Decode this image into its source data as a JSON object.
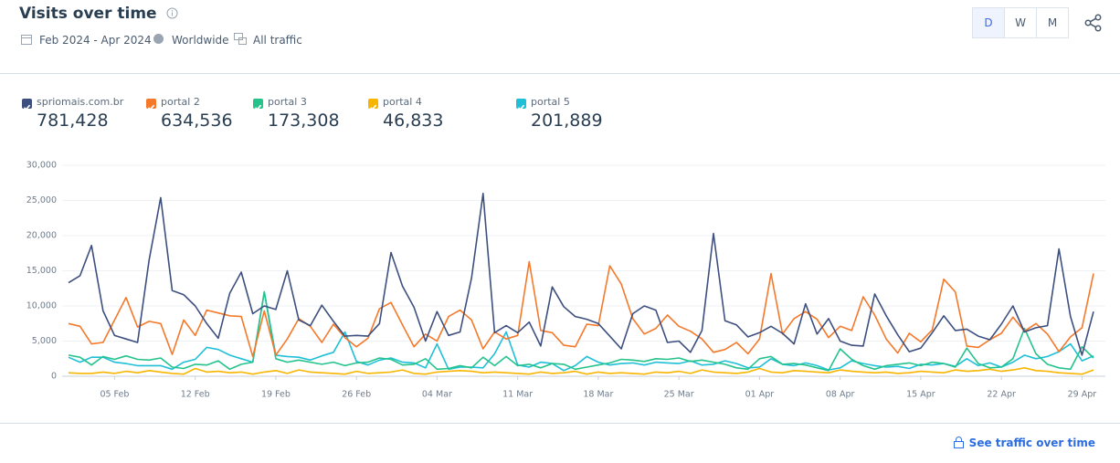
{
  "header": {
    "title": "Visits over time",
    "date_range": "Feb 2024 - Apr 2024",
    "region": "Worldwide",
    "traffic": "All traffic",
    "granularity": [
      "D",
      "W",
      "M"
    ],
    "selected_granularity": "D"
  },
  "footer": {
    "link": "See traffic over time"
  },
  "chart_data": {
    "type": "line",
    "categories": [
      null,
      null,
      null,
      null,
      "05 Feb",
      null,
      null,
      null,
      null,
      null,
      null,
      "12 Feb",
      null,
      null,
      null,
      null,
      null,
      null,
      "19 Feb",
      null,
      null,
      null,
      null,
      null,
      null,
      "26 Feb",
      null,
      null,
      null,
      null,
      null,
      null,
      "04 Mar",
      null,
      null,
      null,
      null,
      null,
      null,
      "11 Mar",
      null,
      null,
      null,
      null,
      null,
      null,
      "18 Mar",
      null,
      null,
      null,
      null,
      null,
      null,
      "25 Mar",
      null,
      null,
      null,
      null,
      null,
      null,
      "01 Apr",
      null,
      null,
      null,
      null,
      null,
      null,
      "08 Apr",
      null,
      null,
      null,
      null,
      null,
      null,
      "15 Apr",
      null,
      null,
      null,
      null,
      null,
      null,
      "22 Apr",
      null,
      null,
      null,
      null,
      null,
      null,
      "29 Apr",
      null
    ],
    "ylim": [
      0,
      30000
    ],
    "yticks": [
      0,
      {
        "value": 5000,
        "label": "5,000"
      },
      {
        "value": 10000,
        "label": "10,000"
      },
      {
        "value": 15000,
        "label": "15,000"
      },
      {
        "value": 20000,
        "label": "20,000"
      },
      {
        "value": 25000,
        "label": "25,000"
      },
      {
        "value": 30000,
        "label": "30,000"
      }
    ],
    "grid": true,
    "series": [
      {
        "name": "spriomais.com.br",
        "total": "781,428",
        "color": "#3d4f7f",
        "values": [
          13300,
          14300,
          18600,
          9300,
          5800,
          5300,
          4800,
          16500,
          25400,
          12200,
          11600,
          10000,
          7500,
          5400,
          11800,
          14800,
          8900,
          10000,
          9500,
          15000,
          8000,
          7200,
          10100,
          7800,
          5700,
          5800,
          5700,
          7500,
          17600,
          12800,
          9800,
          5000,
          9200,
          5800,
          6300,
          14000,
          26000,
          6200,
          7200,
          6200,
          7700,
          4300,
          12700,
          9900,
          8500,
          8100,
          7500,
          5700,
          3900,
          8900,
          10000,
          9400,
          4800,
          5000,
          3400,
          6500,
          20300,
          7900,
          7300,
          5600,
          6200,
          7100,
          6100,
          4600,
          10300,
          6000,
          8200,
          5000,
          4400,
          4300,
          11700,
          8600,
          5900,
          3500,
          4000,
          6200,
          8600,
          6500,
          6700,
          5700,
          5200,
          7400,
          10000,
          6300,
          6900,
          7200,
          18100,
          8500,
          3000,
          9200
        ]
      },
      {
        "name": "portal 2",
        "total": "634,536",
        "color": "#f4792a",
        "values": [
          7500,
          7100,
          4600,
          4800,
          8000,
          11200,
          7000,
          7800,
          7500,
          3100,
          8000,
          5800,
          9400,
          9000,
          8600,
          8500,
          2800,
          9300,
          3000,
          5300,
          8200,
          7100,
          4800,
          7400,
          5500,
          4200,
          5400,
          9600,
          10500,
          7300,
          4200,
          6000,
          5000,
          8500,
          9400,
          8000,
          3900,
          6300,
          5300,
          5800,
          16300,
          6500,
          6200,
          4400,
          4200,
          7400,
          7200,
          15700,
          13100,
          8200,
          6000,
          6800,
          8700,
          7100,
          6400,
          5300,
          3400,
          3800,
          4800,
          3200,
          5300,
          14600,
          6000,
          8200,
          9200,
          8100,
          5500,
          7100,
          6500,
          11300,
          8700,
          5300,
          3300,
          6100,
          4900,
          6600,
          13800,
          12000,
          4300,
          4100,
          5200,
          6100,
          8400,
          6400,
          7500,
          6000,
          3500,
          5600,
          6900,
          14600
        ]
      },
      {
        "name": "portal 3",
        "total": "173,308",
        "color": "#25c38b",
        "values": [
          3000,
          2700,
          1600,
          2800,
          2400,
          2900,
          2400,
          2300,
          2600,
          1300,
          1100,
          1700,
          1600,
          2200,
          1000,
          1700,
          2000,
          12000,
          2500,
          2000,
          2300,
          2000,
          1700,
          2000,
          1500,
          1900,
          2000,
          2600,
          2400,
          1600,
          1700,
          2500,
          1000,
          1100,
          1500,
          1200,
          2700,
          1500,
          2800,
          1500,
          1700,
          1200,
          1800,
          1700,
          1000,
          1300,
          1600,
          1900,
          2400,
          2300,
          2100,
          2500,
          2400,
          2600,
          2100,
          2300,
          2000,
          1700,
          1200,
          1000,
          2500,
          2800,
          1700,
          1800,
          1600,
          1200,
          800,
          3900,
          2400,
          1500,
          1000,
          1500,
          1700,
          1900,
          1500,
          2000,
          1800,
          1300,
          4000,
          1800,
          1200,
          1300,
          2500,
          6800,
          3200,
          1700,
          1200,
          1000,
          4200,
          2600
        ]
      },
      {
        "name": "portal 4",
        "total": "46,833",
        "color": "#f7b500",
        "values": [
          500,
          400,
          400,
          600,
          400,
          700,
          500,
          800,
          600,
          400,
          300,
          1100,
          600,
          700,
          500,
          600,
          300,
          600,
          800,
          400,
          900,
          600,
          500,
          400,
          300,
          700,
          400,
          500,
          600,
          900,
          400,
          300,
          600,
          700,
          800,
          700,
          500,
          600,
          500,
          400,
          300,
          600,
          400,
          500,
          700,
          300,
          600,
          400,
          500,
          400,
          300,
          600,
          500,
          700,
          400,
          900,
          600,
          500,
          400,
          600,
          1100,
          600,
          500,
          800,
          700,
          600,
          500,
          900,
          700,
          600,
          500,
          600,
          400,
          500,
          700,
          600,
          500,
          900,
          700,
          800,
          1000,
          700,
          900,
          1200,
          800,
          700,
          500,
          400,
          300,
          900
        ]
      },
      {
        "name": "portal 5",
        "total": "201,889",
        "color": "#1fbfd7",
        "values": [
          2700,
          2000,
          2700,
          2700,
          2000,
          1800,
          1500,
          1500,
          1500,
          1000,
          2000,
          2400,
          4100,
          3800,
          3000,
          2500,
          2000,
          12000,
          3000,
          2800,
          2700,
          2300,
          2900,
          3400,
          6300,
          2100,
          1600,
          2300,
          2600,
          2000,
          1900,
          1200,
          4600,
          1000,
          1300,
          1300,
          1200,
          3200,
          6300,
          1600,
          1300,
          2000,
          1800,
          800,
          1500,
          2800,
          2000,
          1600,
          1800,
          1900,
          1600,
          2000,
          1900,
          1800,
          2200,
          1600,
          1700,
          2200,
          1800,
          1200,
          1300,
          2500,
          1700,
          1500,
          1900,
          1500,
          900,
          1200,
          2200,
          1800,
          1500,
          1300,
          1400,
          1100,
          1700,
          1600,
          1800,
          1400,
          2500,
          1500,
          1900,
          1300,
          2000,
          3000,
          2500,
          2800,
          3500,
          4600,
          2200,
          2900
        ]
      }
    ]
  }
}
